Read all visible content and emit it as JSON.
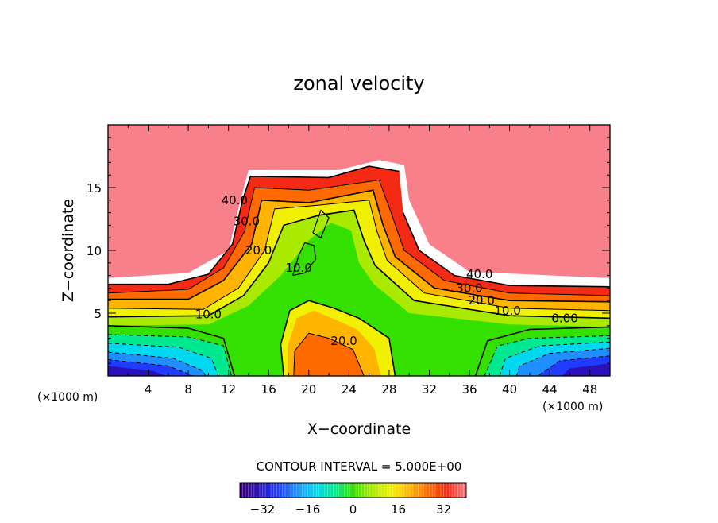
{
  "chart_data": {
    "type": "heatmap",
    "title": "zonal velocity",
    "xlabel": "X−coordinate",
    "ylabel": "Z−coordinate",
    "x_unit_left": "(×1000 m)",
    "x_unit_right": "(×1000 m)",
    "xlim": [
      0,
      50
    ],
    "ylim": [
      0,
      20
    ],
    "x_ticks": [
      "4",
      "8",
      "12",
      "16",
      "20",
      "24",
      "28",
      "32",
      "36",
      "40",
      "44",
      "48"
    ],
    "y_ticks": [
      "5",
      "10",
      "15"
    ],
    "contour_interval_text": "CONTOUR INTERVAL = 5.000E+00",
    "contour_interval": 5.0,
    "contour_labels": [
      {
        "text": "40.0",
        "x": 12.6,
        "y": 14.0
      },
      {
        "text": "30.0",
        "x": 13.8,
        "y": 12.3
      },
      {
        "text": "20.0",
        "x": 15.0,
        "y": 10.0
      },
      {
        "text": "10.0",
        "x": 19.0,
        "y": 8.6
      },
      {
        "text": "10.0",
        "x": 10.0,
        "y": 4.9
      },
      {
        "text": "20.0",
        "x": 23.5,
        "y": 2.8
      },
      {
        "text": "40.0",
        "x": 37.0,
        "y": 8.1
      },
      {
        "text": "30.0",
        "x": 36.0,
        "y": 7.0
      },
      {
        "text": "20.0",
        "x": 37.2,
        "y": 6.0
      },
      {
        "text": "10.0",
        "x": 39.8,
        "y": 5.2
      },
      {
        "text": "0.00",
        "x": 45.5,
        "y": 4.6
      }
    ],
    "colorbar": {
      "range": [
        -40,
        40
      ],
      "tick_labels": [
        "−32",
        "−16",
        "0",
        "16",
        "32"
      ],
      "tick_values": [
        -32,
        -16,
        0,
        16,
        32
      ]
    },
    "colors": {
      "cmap": [
        "#3a0070",
        "#2a12b8",
        "#1f3cff",
        "#1f8fff",
        "#00d8f0",
        "#00e890",
        "#33e000",
        "#aaea00",
        "#f0f000",
        "#ffb400",
        "#ff6a00",
        "#f42a14",
        "#f8808a"
      ]
    }
  }
}
